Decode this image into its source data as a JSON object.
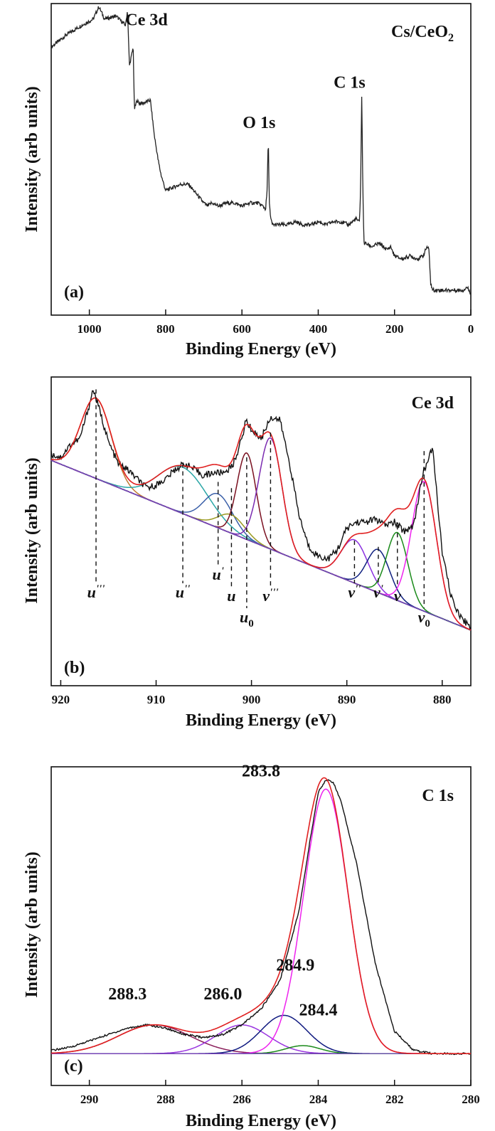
{
  "chart_data": [
    {
      "type": "line",
      "panel_label": "(a)",
      "sample_label": "Cs/CeO",
      "sample_sub": "2",
      "xlabel": "Binding Energy (eV)",
      "ylabel": "Intensity (arb units)",
      "xlim": [
        1100,
        0
      ],
      "x_ticks": [
        "1000",
        "800",
        "600",
        "400",
        "200",
        "0"
      ],
      "series": [
        {
          "color": "#222222",
          "x": [
            1100,
            1060,
            1020,
            990,
            975,
            960,
            930,
            905,
            900,
            895,
            885,
            882,
            875,
            870,
            860,
            840,
            830,
            820,
            812,
            800,
            780,
            760,
            740,
            720,
            700,
            690,
            680,
            660,
            640,
            620,
            600,
            580,
            560,
            545,
            538,
            534,
            531,
            528,
            525,
            520,
            500,
            480,
            460,
            440,
            420,
            400,
            380,
            360,
            340,
            320,
            300,
            295,
            292,
            289,
            286,
            283,
            280,
            275,
            260,
            240,
            220,
            210,
            200,
            180,
            160,
            140,
            125,
            115,
            110,
            105,
            100,
            80,
            60,
            40,
            20,
            10,
            0
          ],
          "y": [
            0.86,
            0.9,
            0.93,
            0.95,
            0.99,
            0.95,
            0.96,
            0.93,
            0.98,
            0.8,
            0.86,
            0.66,
            0.69,
            0.68,
            0.68,
            0.69,
            0.58,
            0.5,
            0.45,
            0.4,
            0.41,
            0.42,
            0.42,
            0.39,
            0.36,
            0.35,
            0.36,
            0.35,
            0.36,
            0.36,
            0.35,
            0.36,
            0.36,
            0.35,
            0.34,
            0.4,
            0.57,
            0.36,
            0.31,
            0.29,
            0.29,
            0.29,
            0.3,
            0.29,
            0.29,
            0.3,
            0.29,
            0.3,
            0.3,
            0.29,
            0.31,
            0.3,
            0.3,
            0.4,
            0.7,
            0.4,
            0.23,
            0.23,
            0.22,
            0.23,
            0.21,
            0.22,
            0.19,
            0.18,
            0.19,
            0.18,
            0.19,
            0.22,
            0.21,
            0.1,
            0.08,
            0.08,
            0.08,
            0.08,
            0.08,
            0.09,
            0.07
          ]
        }
      ],
      "annotations": [
        {
          "text": "Ce 3d",
          "x": 850,
          "y": 0.93
        },
        {
          "text": "O 1s",
          "x": 555,
          "y": 0.6
        },
        {
          "text": "C 1s",
          "x": 318,
          "y": 0.73
        }
      ]
    },
    {
      "type": "line",
      "panel_label": "(b)",
      "title": "Ce 3d",
      "xlabel": "Binding Energy (eV)",
      "ylabel": "Intensity (arb units)",
      "xlim": [
        921,
        877
      ],
      "x_ticks": [
        "920",
        "910",
        "900",
        "890",
        "880"
      ],
      "baseline": {
        "x": [
          921,
          877
        ],
        "y": [
          0.73,
          0.18
        ]
      },
      "experimental": {
        "color": "#111111",
        "x": [
          921,
          920,
          919,
          918,
          917,
          916.6,
          916,
          915,
          914,
          913,
          912,
          911,
          910,
          909,
          908,
          907,
          906,
          905,
          904,
          903,
          902,
          901,
          900.6,
          900,
          899,
          898,
          897,
          896,
          895,
          894,
          893,
          892,
          891,
          890,
          889,
          888,
          887,
          886,
          885,
          884,
          883,
          882,
          881,
          880,
          879,
          878,
          877
        ],
        "y": [
          0.75,
          0.74,
          0.78,
          0.8,
          0.91,
          0.96,
          0.9,
          0.79,
          0.72,
          0.7,
          0.67,
          0.64,
          0.65,
          0.67,
          0.7,
          0.72,
          0.7,
          0.68,
          0.69,
          0.69,
          0.71,
          0.8,
          0.86,
          0.83,
          0.8,
          0.87,
          0.86,
          0.72,
          0.55,
          0.45,
          0.42,
          0.41,
          0.44,
          0.51,
          0.53,
          0.53,
          0.54,
          0.52,
          0.53,
          0.5,
          0.52,
          0.69,
          0.77,
          0.43,
          0.28,
          0.22,
          0.19
        ]
      },
      "peaks": [
        {
          "label": "u'''",
          "center": 916.3,
          "height": 0.26,
          "width": 1.6,
          "color": "#c07a30"
        },
        {
          "label": "u''",
          "center": 907.2,
          "height": 0.15,
          "width": 2.6,
          "color": "#2aa6a6"
        },
        {
          "label": "u'",
          "center": 903.5,
          "height": 0.11,
          "width": 1.5,
          "color": "#3a5fa8"
        },
        {
          "label": "u",
          "center": 902.1,
          "height": 0.06,
          "width": 1.4,
          "color": "#9a9a20"
        },
        {
          "label": "u0",
          "center": 900.5,
          "height": 0.28,
          "width": 1.0,
          "color": "#7a1020"
        },
        {
          "label": "v'''",
          "center": 898.0,
          "height": 0.36,
          "width": 1.2,
          "color": "#7a2ab0"
        },
        {
          "label": "v''",
          "center": 889.2,
          "height": 0.14,
          "width": 1.4,
          "color": "#8a30e0"
        },
        {
          "label": "v'",
          "center": 886.7,
          "height": 0.14,
          "width": 1.2,
          "color": "#102080"
        },
        {
          "label": "v",
          "center": 884.7,
          "height": 0.22,
          "width": 1.1,
          "color": "#1a8a1a"
        },
        {
          "label": "v0",
          "center": 881.9,
          "height": 0.42,
          "width": 1.3,
          "color": "#ee22ee"
        }
      ],
      "fit_color": "#e02020",
      "peak_markers": [
        {
          "label": "u",
          "sup": "'''",
          "sub": "",
          "x": 916.3,
          "tip_y": 0.96
        },
        {
          "label": "u",
          "sup": "''",
          "sub": "",
          "x": 907.2,
          "tip_y": 0.72
        },
        {
          "label": "u",
          "sup": "'",
          "sub": "",
          "x": 903.5,
          "tip_y": 0.66
        },
        {
          "label": "u",
          "sup": "",
          "sub": "",
          "x": 902.1,
          "tip_y": 0.64
        },
        {
          "label": "u",
          "sup": "",
          "sub": "0",
          "x": 900.5,
          "tip_y": 0.74
        },
        {
          "label": "v",
          "sup": "'''",
          "sub": "",
          "x": 898.0,
          "tip_y": 0.82
        },
        {
          "label": "v",
          "sup": "''",
          "sub": "",
          "x": 889.2,
          "tip_y": 0.47
        },
        {
          "label": "v",
          "sup": "'",
          "sub": "",
          "x": 886.7,
          "tip_y": 0.45
        },
        {
          "label": "v",
          "sup": "",
          "sub": "",
          "x": 884.7,
          "tip_y": 0.52
        },
        {
          "label": "v",
          "sup": "",
          "sub": "0",
          "x": 881.9,
          "tip_y": 0.76
        }
      ]
    },
    {
      "type": "line",
      "panel_label": "(c)",
      "title": "C 1s",
      "xlabel": "Binding Energy (eV)",
      "ylabel": "Intensity (arb units)",
      "xlim": [
        291,
        280
      ],
      "x_ticks": [
        "290",
        "288",
        "286",
        "284",
        "282",
        "280"
      ],
      "baseline_y": 0.1,
      "experimental": {
        "color": "#111111",
        "x": [
          291,
          290.5,
          290,
          289.5,
          289,
          288.5,
          288,
          287.5,
          287,
          286.5,
          286,
          285.5,
          285,
          284.5,
          284.2,
          284,
          283.8,
          283.6,
          283.4,
          283,
          282.5,
          282,
          281.5,
          281,
          280.5,
          280
        ],
        "y": [
          0.11,
          0.12,
          0.14,
          0.16,
          0.18,
          0.19,
          0.18,
          0.16,
          0.15,
          0.16,
          0.19,
          0.24,
          0.33,
          0.55,
          0.78,
          0.92,
          0.96,
          0.95,
          0.89,
          0.7,
          0.38,
          0.17,
          0.11,
          0.1,
          0.1,
          0.1
        ]
      },
      "peaks": [
        {
          "label": "288.3",
          "center": 288.3,
          "height": 0.09,
          "width": 0.95,
          "color": "#8a1e5a"
        },
        {
          "label": "286.0",
          "center": 286.0,
          "height": 0.09,
          "width": 0.7,
          "color": "#9a35e0"
        },
        {
          "label": "284.9",
          "center": 284.9,
          "height": 0.12,
          "width": 0.6,
          "color": "#101a80"
        },
        {
          "label": "284.4",
          "center": 284.4,
          "height": 0.025,
          "width": 0.45,
          "color": "#1a8a1a"
        },
        {
          "label": "283.8",
          "center": 283.8,
          "height": 0.83,
          "width": 0.58,
          "color": "#ee22ee"
        }
      ],
      "fit_color": "#e02020",
      "annotations": [
        {
          "text": "283.8",
          "x": 285.5,
          "y": 0.97
        },
        {
          "text": "288.3",
          "x": 289.0,
          "y": 0.27
        },
        {
          "text": "286.0",
          "x": 286.5,
          "y": 0.27
        },
        {
          "text": "284.9",
          "x": 284.6,
          "y": 0.36
        },
        {
          "text": "284.4",
          "x": 284.0,
          "y": 0.22
        }
      ]
    }
  ]
}
